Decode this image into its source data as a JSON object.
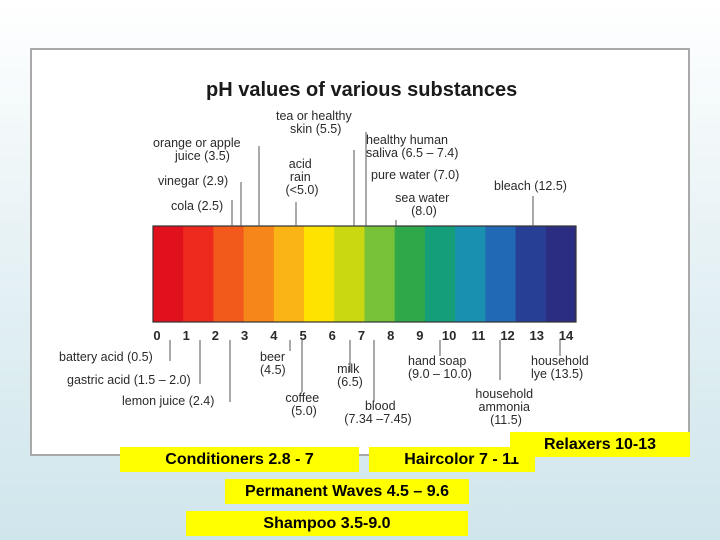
{
  "diagram": {
    "title": "pH values of various substances",
    "colors": [
      "#e0101d",
      "#ee2a1e",
      "#f25a1c",
      "#f6861a",
      "#fbb416",
      "#ffe300",
      "#c9d810",
      "#78c23a",
      "#2fa84a",
      "#149f7a",
      "#1a90b0",
      "#2269b5",
      "#283f96",
      "#2a2d82"
    ],
    "scale_labels": [
      "0",
      "1",
      "2",
      "3",
      "4",
      "5",
      "6",
      "7",
      "8",
      "9",
      "10",
      "11",
      "12",
      "13",
      "14"
    ],
    "above_labels": [
      {
        "lines": [
          "tea or healthy",
          "skin (5.5)"
        ]
      },
      {
        "lines": [
          "orange or apple",
          "juice (3.5)"
        ]
      },
      {
        "lines": [
          "acid",
          "rain",
          "(<5.0)"
        ]
      },
      {
        "lines": [
          "vinegar (2.9)"
        ]
      },
      {
        "lines": [
          "cola (2.5)"
        ]
      },
      {
        "lines": [
          "healthy human",
          "saliva (6.5 – 7.4)"
        ]
      },
      {
        "lines": [
          "pure water (7.0)"
        ]
      },
      {
        "lines": [
          "sea water",
          "(8.0)"
        ]
      },
      {
        "lines": [
          "bleach (12.5)"
        ]
      }
    ],
    "below_labels": [
      {
        "lines": [
          "battery acid (0.5)"
        ]
      },
      {
        "lines": [
          "gastric acid (1.5 – 2.0)"
        ]
      },
      {
        "lines": [
          "lemon juice (2.4)"
        ]
      },
      {
        "lines": [
          "beer",
          "(4.5)"
        ]
      },
      {
        "lines": [
          "coffee",
          "(5.0)"
        ]
      },
      {
        "lines": [
          "milk",
          "(6.5)"
        ]
      },
      {
        "lines": [
          "blood",
          "(7.34 –7.45)"
        ]
      },
      {
        "lines": [
          "hand soap",
          "(9.0 – 10.0)"
        ]
      },
      {
        "lines": [
          "household",
          "ammonia",
          "(11.5)"
        ]
      },
      {
        "lines": [
          "household",
          "lye (13.5)"
        ]
      }
    ]
  },
  "highlights": {
    "conditioners": "Conditioners 2.8 - 7",
    "haircolor": "Haircolor 7 - 11",
    "relaxers": "Relaxers 10-13",
    "permanent_waves": "Permanent Waves 4.5 – 9.6",
    "shampoo": "Shampoo 3.5-9.0"
  }
}
